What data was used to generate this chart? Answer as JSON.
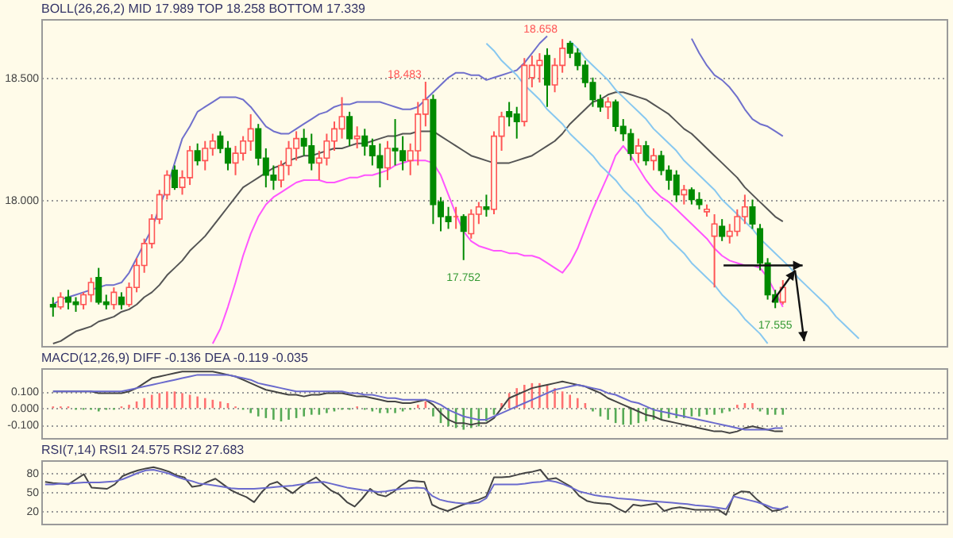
{
  "chart_data": [
    {
      "type": "candlestick",
      "title": "BOLL(26,26,2)  MID 17.989  TOP 18.258  BOTTOM 17.339",
      "categories": [
        null,
        null,
        null,
        null,
        null,
        null,
        null,
        null,
        null,
        null,
        null,
        null,
        null,
        null,
        null,
        null,
        null,
        null,
        null,
        null,
        null,
        null,
        null,
        null,
        null,
        null,
        null,
        null,
        null,
        null,
        null,
        null,
        null,
        null,
        null,
        null,
        null,
        null,
        null,
        null,
        null,
        null,
        null,
        null,
        null,
        null,
        null,
        null,
        null,
        null,
        null,
        null,
        null,
        null,
        null,
        null,
        null,
        null,
        null,
        null,
        null,
        null,
        null,
        null,
        null,
        null,
        null,
        null,
        null,
        null,
        null,
        null,
        null,
        null,
        null,
        null,
        null,
        null,
        null,
        null,
        null,
        null,
        null,
        null,
        null,
        null,
        null,
        null,
        null,
        null,
        null,
        null,
        null,
        null,
        null,
        null,
        null,
        null,
        null,
        null,
        null,
        null,
        null,
        null,
        null,
        null,
        null,
        null,
        null,
        null,
        null,
        null,
        null,
        null,
        null,
        null,
        null
      ],
      "ohlc": [
        [
          17.57,
          17.6,
          17.52,
          17.56
        ],
        [
          17.56,
          17.62,
          17.55,
          17.6
        ],
        [
          17.6,
          17.63,
          17.55,
          17.58
        ],
        [
          17.58,
          17.6,
          17.54,
          17.57
        ],
        [
          17.57,
          17.62,
          17.55,
          17.61
        ],
        [
          17.61,
          17.68,
          17.58,
          17.66
        ],
        [
          17.68,
          17.72,
          17.57,
          17.58
        ],
        [
          17.58,
          17.61,
          17.55,
          17.57
        ],
        [
          17.57,
          17.64,
          17.55,
          17.62
        ],
        [
          17.6,
          17.62,
          17.55,
          17.57
        ],
        [
          17.57,
          17.66,
          17.56,
          17.64
        ],
        [
          17.64,
          17.76,
          17.62,
          17.73
        ],
        [
          17.73,
          17.84,
          17.7,
          17.82
        ],
        [
          17.82,
          17.94,
          17.8,
          17.92
        ],
        [
          17.92,
          18.04,
          17.9,
          18.02
        ],
        [
          18.02,
          18.12,
          18.0,
          18.1
        ],
        [
          18.12,
          18.14,
          18.04,
          18.05
        ],
        [
          18.05,
          18.12,
          18.02,
          18.09
        ],
        [
          18.09,
          18.22,
          18.06,
          18.2
        ],
        [
          18.2,
          18.23,
          18.14,
          18.16
        ],
        [
          18.16,
          18.24,
          18.12,
          18.21
        ],
        [
          18.21,
          18.27,
          18.18,
          18.24
        ],
        [
          18.26,
          18.28,
          18.19,
          18.21
        ],
        [
          18.21,
          18.24,
          18.12,
          18.15
        ],
        [
          18.15,
          18.22,
          18.1,
          18.19
        ],
        [
          18.19,
          18.26,
          18.16,
          18.24
        ],
        [
          18.24,
          18.35,
          18.2,
          18.29
        ],
        [
          18.29,
          18.31,
          18.14,
          18.17
        ],
        [
          18.17,
          18.21,
          18.05,
          18.1
        ],
        [
          18.1,
          18.14,
          18.04,
          18.08
        ],
        [
          18.08,
          18.16,
          18.05,
          18.14
        ],
        [
          18.14,
          18.24,
          18.1,
          18.21
        ],
        [
          18.21,
          18.28,
          18.16,
          18.25
        ],
        [
          18.25,
          18.29,
          18.18,
          18.22
        ],
        [
          18.22,
          18.27,
          18.12,
          18.15
        ],
        [
          18.15,
          18.2,
          18.08,
          18.17
        ],
        [
          18.17,
          18.27,
          18.14,
          18.24
        ],
        [
          18.24,
          18.32,
          18.2,
          18.29
        ],
        [
          18.29,
          18.42,
          18.25,
          18.34
        ],
        [
          18.34,
          18.36,
          18.22,
          18.25
        ],
        [
          18.25,
          18.3,
          18.21,
          18.26
        ],
        [
          18.26,
          18.29,
          18.18,
          18.22
        ],
        [
          18.22,
          18.25,
          18.14,
          18.18
        ],
        [
          18.18,
          18.23,
          18.05,
          18.13
        ],
        [
          18.13,
          18.24,
          18.08,
          18.21
        ],
        [
          18.21,
          18.33,
          18.14,
          18.2
        ],
        [
          18.2,
          18.26,
          18.12,
          18.16
        ],
        [
          18.16,
          18.23,
          18.1,
          18.2
        ],
        [
          18.2,
          18.4,
          18.14,
          18.35
        ],
        [
          18.35,
          18.483,
          18.3,
          18.41
        ],
        [
          18.41,
          18.43,
          17.9,
          17.98
        ],
        [
          17.99,
          18.01,
          17.87,
          17.93
        ],
        [
          17.93,
          17.97,
          17.88,
          17.91
        ],
        [
          17.93,
          17.97,
          17.88,
          17.93
        ],
        [
          17.93,
          17.94,
          17.752,
          17.87
        ],
        [
          17.86,
          17.96,
          17.84,
          17.94
        ],
        [
          17.94,
          17.99,
          17.9,
          17.97
        ],
        [
          17.97,
          18.02,
          17.93,
          17.96
        ],
        [
          17.96,
          18.28,
          17.94,
          18.26
        ],
        [
          18.26,
          18.36,
          18.2,
          18.34
        ],
        [
          18.36,
          18.4,
          18.3,
          18.34
        ],
        [
          18.35,
          18.38,
          18.25,
          18.32
        ],
        [
          18.32,
          18.58,
          18.3,
          18.55
        ],
        [
          18.5,
          18.59,
          18.46,
          18.55
        ],
        [
          18.55,
          18.6,
          18.48,
          18.57
        ],
        [
          18.59,
          18.62,
          18.38,
          18.47
        ],
        [
          18.47,
          18.58,
          18.44,
          18.55
        ],
        [
          18.55,
          18.658,
          18.52,
          18.62
        ],
        [
          18.64,
          18.65,
          18.58,
          18.6
        ],
        [
          18.6,
          18.62,
          18.53,
          18.55
        ],
        [
          18.55,
          18.57,
          18.46,
          18.48
        ],
        [
          18.48,
          18.5,
          18.38,
          18.41
        ],
        [
          18.41,
          18.43,
          18.36,
          18.38
        ],
        [
          18.38,
          18.42,
          18.33,
          18.4
        ],
        [
          18.4,
          18.41,
          18.28,
          18.3
        ],
        [
          18.3,
          18.33,
          18.24,
          18.27
        ],
        [
          18.27,
          18.29,
          18.16,
          18.19
        ],
        [
          18.19,
          18.25,
          18.15,
          18.22
        ],
        [
          18.22,
          18.24,
          18.14,
          18.16
        ],
        [
          18.16,
          18.21,
          18.12,
          18.18
        ],
        [
          18.18,
          18.2,
          18.1,
          18.12
        ],
        [
          18.12,
          18.14,
          18.04,
          18.08
        ],
        [
          18.1,
          18.12,
          17.99,
          18.02
        ],
        [
          18.02,
          18.06,
          17.98,
          18.04
        ],
        [
          18.04,
          18.05,
          17.98,
          18.0
        ],
        [
          18.0,
          18.03,
          17.96,
          17.98
        ],
        [
          17.95,
          17.98,
          17.93,
          17.96
        ],
        [
          17.85,
          17.94,
          17.64,
          17.9
        ],
        [
          17.89,
          17.92,
          17.83,
          17.85
        ],
        [
          17.85,
          17.9,
          17.82,
          17.87
        ],
        [
          17.87,
          17.96,
          17.85,
          17.93
        ],
        [
          17.93,
          18.02,
          17.9,
          17.97
        ],
        [
          17.97,
          18.0,
          17.88,
          17.9
        ],
        [
          17.88,
          17.9,
          17.71,
          17.74
        ],
        [
          17.74,
          17.76,
          17.59,
          17.61
        ],
        [
          17.61,
          17.63,
          17.555,
          17.58
        ],
        [
          17.58,
          17.67,
          17.57,
          17.64
        ],
        null,
        null,
        null,
        null,
        null,
        null,
        null,
        null,
        null,
        null,
        null,
        null,
        null,
        null,
        null,
        null,
        null,
        null,
        null,
        null
      ],
      "series": [
        {
          "type": "line",
          "color": "#7070cc",
          "values": [
            17.57,
            17.59,
            17.6,
            17.61,
            17.62,
            17.63,
            17.64,
            17.65,
            17.65,
            17.66,
            17.7,
            17.76,
            17.82,
            17.88,
            17.97,
            18.05,
            18.15,
            18.25,
            18.3,
            18.36,
            18.38,
            18.4,
            18.42,
            18.42,
            18.42,
            18.41,
            18.38,
            18.34,
            18.3,
            18.28,
            18.27,
            18.27,
            18.29,
            18.31,
            18.33,
            18.35,
            18.36,
            18.38,
            18.39,
            18.39,
            18.4,
            18.4,
            18.4,
            18.4,
            18.39,
            18.38,
            18.37,
            18.37,
            18.38,
            18.41,
            18.44,
            18.47,
            18.5,
            18.52,
            18.52,
            18.51,
            18.51,
            18.49,
            18.5,
            18.51,
            18.52,
            18.53,
            18.56,
            18.6,
            18.64,
            18.67,
            null,
            null,
            null,
            null,
            null,
            null,
            null,
            null,
            null,
            null,
            null,
            null,
            null,
            null,
            null,
            null,
            null,
            null,
            18.66,
            18.6,
            18.55,
            18.51,
            18.49,
            18.46,
            18.42,
            18.37,
            18.33,
            18.31,
            18.3,
            18.28,
            18.26,
            null,
            null,
            null,
            null,
            null,
            null,
            null,
            null,
            null,
            null,
            null,
            null,
            null,
            null,
            null,
            null,
            null,
            null,
            null,
            null
          ]
        },
        {
          "type": "line",
          "color": "#555555",
          "values": [
            17.41,
            17.42,
            17.44,
            17.46,
            17.47,
            17.48,
            17.5,
            17.51,
            17.52,
            17.54,
            17.55,
            17.57,
            17.6,
            17.62,
            17.65,
            17.69,
            17.72,
            17.75,
            17.79,
            17.82,
            17.85,
            17.89,
            17.93,
            17.97,
            18.01,
            18.05,
            18.07,
            18.09,
            18.11,
            18.13,
            18.14,
            18.16,
            18.17,
            18.18,
            18.18,
            18.19,
            18.2,
            18.21,
            18.21,
            18.22,
            18.23,
            18.23,
            18.24,
            18.25,
            18.26,
            18.26,
            18.27,
            18.27,
            18.28,
            18.28,
            18.28,
            18.26,
            18.24,
            18.22,
            18.2,
            18.18,
            18.17,
            18.16,
            18.15,
            18.15,
            18.15,
            18.16,
            18.17,
            18.18,
            18.2,
            18.22,
            18.24,
            18.27,
            18.31,
            18.34,
            18.37,
            18.4,
            18.41,
            18.43,
            18.44,
            18.44,
            18.43,
            18.42,
            18.41,
            18.39,
            18.37,
            18.35,
            18.32,
            18.29,
            18.27,
            18.24,
            18.21,
            18.18,
            18.15,
            18.12,
            18.09,
            18.05,
            18.02,
            17.99,
            17.96,
            17.93,
            17.91,
            null,
            null,
            null,
            null,
            null,
            null,
            null,
            null,
            null,
            null,
            null,
            null,
            null,
            null,
            null,
            null,
            null,
            null,
            null,
            null
          ]
        },
        {
          "type": "line",
          "color": "#ff55ff",
          "values": [
            null,
            null,
            null,
            null,
            null,
            null,
            null,
            null,
            null,
            null,
            null,
            null,
            null,
            null,
            null,
            null,
            null,
            null,
            null,
            null,
            null,
            17.41,
            17.47,
            17.56,
            17.66,
            17.77,
            17.86,
            17.93,
            17.98,
            18.01,
            18.03,
            18.05,
            18.07,
            18.08,
            18.08,
            18.08,
            18.07,
            18.07,
            18.08,
            18.09,
            18.09,
            18.1,
            18.1,
            18.11,
            18.12,
            18.14,
            18.15,
            18.16,
            18.16,
            18.16,
            18.15,
            18.1,
            18.02,
            17.94,
            17.87,
            17.83,
            17.81,
            17.8,
            17.79,
            17.79,
            17.78,
            17.78,
            17.77,
            17.77,
            17.76,
            17.74,
            17.72,
            17.7,
            17.74,
            17.8,
            17.88,
            17.96,
            18.03,
            18.1,
            18.18,
            18.22,
            18.18,
            18.13,
            18.08,
            18.04,
            18.01,
            17.99,
            17.96,
            17.93,
            17.9,
            17.87,
            17.84,
            17.8,
            17.77,
            17.75,
            17.74,
            17.73,
            17.73,
            17.72,
            17.68,
            17.62,
            17.56,
            null,
            null,
            null,
            null,
            null,
            null,
            null,
            null,
            null,
            null,
            null,
            null,
            null,
            null,
            null,
            null,
            null,
            null,
            null,
            null
          ]
        },
        {
          "type": "line",
          "color": "#88c8f0",
          "values": [
            null,
            null,
            null,
            null,
            null,
            null,
            null,
            null,
            null,
            null,
            null,
            null,
            null,
            null,
            null,
            null,
            null,
            null,
            null,
            null,
            null,
            null,
            null,
            null,
            null,
            null,
            null,
            null,
            null,
            null,
            null,
            null,
            null,
            null,
            null,
            null,
            null,
            null,
            null,
            null,
            null,
            null,
            null,
            null,
            null,
            null,
            null,
            null,
            null,
            null,
            null,
            null,
            null,
            null,
            null,
            null,
            null,
            null,
            null,
            null,
            null,
            null,
            null,
            null,
            null,
            null,
            null,
            null,
            18.65,
            18.62,
            18.58,
            18.55,
            18.52,
            18.49,
            18.45,
            18.42,
            18.39,
            18.36,
            18.33,
            18.29,
            18.26,
            18.23,
            18.2,
            18.16,
            18.13,
            18.1,
            18.07,
            18.04,
            18.0,
            17.97,
            17.94,
            17.91,
            17.88,
            17.84,
            17.81,
            17.78,
            17.75,
            17.72,
            17.68,
            17.65,
            17.62,
            17.59,
            17.56,
            17.52,
            17.49,
            17.46,
            17.43,
            null,
            null,
            null,
            null,
            null,
            null,
            null,
            null,
            null,
            null
          ]
        },
        {
          "type": "line",
          "color": "#88c8f0",
          "values": [
            null,
            null,
            null,
            null,
            null,
            null,
            null,
            null,
            null,
            null,
            null,
            null,
            null,
            null,
            null,
            null,
            null,
            null,
            null,
            null,
            null,
            null,
            null,
            null,
            null,
            null,
            null,
            null,
            null,
            null,
            null,
            null,
            null,
            null,
            null,
            null,
            null,
            null,
            null,
            null,
            null,
            null,
            null,
            null,
            null,
            null,
            null,
            null,
            null,
            null,
            null,
            null,
            null,
            null,
            null,
            null,
            null,
            18.64,
            18.61,
            18.57,
            18.54,
            18.51,
            18.47,
            18.44,
            18.41,
            18.37,
            18.34,
            18.31,
            18.27,
            18.24,
            18.21,
            18.18,
            18.14,
            18.11,
            18.08,
            18.04,
            18.01,
            17.98,
            17.94,
            17.91,
            17.88,
            17.84,
            17.81,
            17.78,
            17.74,
            17.71,
            17.68,
            17.65,
            17.61,
            17.58,
            17.55,
            17.51,
            17.48,
            17.45,
            17.41,
            null,
            null,
            null,
            null,
            null,
            null,
            null,
            null,
            null,
            null,
            null,
            null,
            null,
            null,
            null,
            null,
            null,
            null,
            null,
            null,
            null,
            null
          ]
        }
      ],
      "annotations": [
        "18.483",
        {
          "text": "18.658",
          "y": 18.658
        },
        {
          "text": "17.752",
          "y": 17.752
        },
        {
          "text": "17.555",
          "y": 17.555
        }
      ],
      "ylim": [
        17.4,
        18.74
      ],
      "yticks": [
        {
          "value": 18.5,
          "label": "18.500"
        },
        {
          "value": 18,
          "label": "18.000"
        }
      ],
      "grid": "y",
      "tick_labels": "y"
    },
    {
      "type": "bar",
      "title": "MACD(12,26,9)  DIFF -0.136  DEA -0.119  -0.035",
      "categories": [
        null,
        null,
        null,
        null,
        null,
        null,
        null,
        null,
        null,
        null,
        null,
        null,
        null,
        null,
        null,
        null,
        null,
        null,
        null,
        null,
        null,
        null,
        null,
        null,
        null,
        null,
        null,
        null,
        null,
        null,
        null,
        null,
        null,
        null,
        null,
        null,
        null,
        null,
        null,
        null,
        null,
        null,
        null,
        null,
        null,
        null,
        null,
        null,
        null,
        null,
        null,
        null,
        null,
        null,
        null,
        null,
        null,
        null,
        null,
        null,
        null,
        null,
        null,
        null,
        null,
        null,
        null,
        null,
        null,
        null,
        null,
        null,
        null,
        null,
        null,
        null,
        null,
        null,
        null,
        null,
        null,
        null,
        null,
        null,
        null,
        null,
        null,
        null,
        null,
        null,
        null,
        null,
        null,
        null,
        null,
        null,
        null,
        null,
        null,
        null,
        null,
        null,
        null,
        null,
        null,
        null,
        null,
        null,
        null,
        null,
        null,
        null,
        null,
        null,
        null,
        null,
        null
      ],
      "series": [
        {
          "type": "bar",
          "values": [
            0.01,
            0.01,
            0.01,
            -0.01,
            -0.01,
            -0.01,
            -0.02,
            -0.01,
            -0.01,
            0.01,
            0.02,
            0.04,
            0.06,
            0.08,
            0.09,
            0.1,
            0.1,
            0.09,
            0.08,
            0.07,
            0.06,
            0.05,
            0.04,
            0.03,
            0.01,
            -0.01,
            -0.03,
            -0.05,
            -0.06,
            -0.07,
            -0.08,
            -0.07,
            -0.06,
            -0.05,
            -0.04,
            -0.04,
            -0.03,
            -0.02,
            -0.01,
            -0.01,
            0.01,
            -0.01,
            -0.02,
            -0.03,
            -0.03,
            -0.03,
            -0.02,
            -0.01,
            0.02,
            0.04,
            -0.05,
            -0.09,
            -0.11,
            -0.12,
            -0.13,
            -0.12,
            -0.11,
            -0.08,
            -0.04,
            0.03,
            0.09,
            0.12,
            0.14,
            0.15,
            0.15,
            0.14,
            0.12,
            0.1,
            0.08,
            0.06,
            0.03,
            -0.02,
            -0.05,
            -0.07,
            -0.09,
            -0.1,
            -0.1,
            -0.09,
            -0.08,
            -0.07,
            -0.07,
            -0.06,
            -0.06,
            -0.06,
            -0.05,
            -0.05,
            -0.04,
            -0.04,
            -0.03,
            -0.02,
            0.02,
            0.03,
            0.03,
            -0.02,
            -0.04,
            -0.04,
            -0.04,
            null,
            null,
            null,
            null,
            null,
            null,
            null,
            null,
            null,
            null,
            null,
            null,
            null,
            null,
            null,
            null,
            null,
            null,
            null,
            null
          ],
          "colors": [
            "#ff7070",
            "#ff7070",
            "#ff7070",
            "#55aa55",
            "#55aa55",
            "#55aa55",
            "#55aa55",
            "#55aa55",
            "#55aa55",
            "#ff7070",
            "#ff7070",
            "#ff7070",
            "#ff7070",
            "#ff7070",
            "#ff7070",
            "#ff7070",
            "#ff7070",
            "#ff7070",
            "#ff7070",
            "#ff7070",
            "#ff7070",
            "#ff7070",
            "#ff7070",
            "#ff7070",
            "#ff7070",
            "#55aa55",
            "#55aa55",
            "#55aa55",
            "#55aa55",
            "#55aa55",
            "#55aa55",
            "#55aa55",
            "#55aa55",
            "#55aa55",
            "#55aa55",
            "#55aa55",
            "#55aa55",
            "#55aa55",
            "#55aa55",
            "#55aa55",
            "#ff7070",
            "#55aa55",
            "#55aa55",
            "#55aa55",
            "#55aa55",
            "#55aa55",
            "#55aa55",
            "#55aa55",
            "#ff7070",
            "#ff7070",
            "#55aa55",
            "#55aa55",
            "#55aa55",
            "#55aa55",
            "#55aa55",
            "#55aa55",
            "#55aa55",
            "#55aa55",
            "#55aa55",
            "#ff7070",
            "#ff7070",
            "#ff7070",
            "#ff7070",
            "#ff7070",
            "#ff7070",
            "#ff7070",
            "#ff7070",
            "#ff7070",
            "#ff7070",
            "#ff7070",
            "#ff7070",
            "#55aa55",
            "#55aa55",
            "#55aa55",
            "#55aa55",
            "#55aa55",
            "#55aa55",
            "#55aa55",
            "#55aa55",
            "#55aa55",
            "#55aa55",
            "#55aa55",
            "#55aa55",
            "#55aa55",
            "#55aa55",
            "#55aa55",
            "#55aa55",
            "#55aa55",
            "#55aa55",
            "#55aa55",
            "#ff7070",
            "#ff7070",
            "#ff7070",
            "#55aa55",
            "#55aa55",
            "#55aa55",
            "#55aa55",
            null,
            null,
            null,
            null,
            null,
            null,
            null,
            null,
            null,
            null,
            null,
            null,
            null,
            null,
            null,
            null,
            null,
            null,
            null,
            null
          ]
        },
        {
          "type": "line",
          "color": "#444444",
          "values": [
            0.1,
            0.1,
            0.1,
            0.1,
            0.1,
            0.1,
            0.09,
            0.09,
            0.09,
            0.09,
            0.1,
            0.12,
            0.15,
            0.18,
            0.19,
            0.2,
            0.21,
            0.22,
            0.22,
            0.22,
            0.22,
            0.22,
            0.21,
            0.2,
            0.19,
            0.17,
            0.15,
            0.13,
            0.11,
            0.1,
            0.09,
            0.08,
            0.08,
            0.07,
            0.08,
            0.08,
            0.09,
            0.09,
            0.09,
            0.08,
            0.07,
            0.07,
            0.06,
            0.05,
            0.04,
            0.04,
            0.03,
            0.03,
            0.04,
            0.05,
            0.02,
            -0.03,
            -0.07,
            -0.09,
            -0.09,
            -0.1,
            -0.09,
            -0.09,
            -0.06,
            0.0,
            0.06,
            0.08,
            0.1,
            0.12,
            0.13,
            0.14,
            0.15,
            0.16,
            0.15,
            0.14,
            0.13,
            0.11,
            0.09,
            0.06,
            0.04,
            0.02,
            0.0,
            -0.02,
            -0.04,
            -0.05,
            -0.07,
            -0.08,
            -0.09,
            -0.1,
            -0.11,
            -0.12,
            -0.13,
            -0.14,
            -0.14,
            -0.15,
            -0.14,
            -0.12,
            -0.11,
            -0.12,
            -0.13,
            -0.14,
            -0.14,
            null,
            null,
            null,
            null,
            null,
            null,
            null,
            null,
            null,
            null,
            null,
            null,
            null,
            null,
            null,
            null,
            null,
            null,
            null,
            null
          ]
        },
        {
          "type": "line",
          "color": "#6a6acd",
          "values": [
            0.1,
            0.1,
            0.1,
            0.1,
            0.1,
            0.1,
            0.1,
            0.1,
            0.1,
            0.1,
            0.11,
            0.12,
            0.13,
            0.14,
            0.15,
            0.16,
            0.17,
            0.18,
            0.19,
            0.2,
            0.2,
            0.2,
            0.2,
            0.2,
            0.19,
            0.18,
            0.17,
            0.15,
            0.14,
            0.13,
            0.12,
            0.11,
            0.1,
            0.1,
            0.1,
            0.1,
            0.1,
            0.1,
            0.1,
            0.09,
            0.09,
            0.08,
            0.08,
            0.07,
            0.06,
            0.06,
            0.05,
            0.05,
            0.05,
            0.05,
            0.04,
            0.02,
            -0.01,
            -0.03,
            -0.05,
            -0.06,
            -0.07,
            -0.07,
            -0.05,
            -0.03,
            -0.01,
            0.01,
            0.03,
            0.05,
            0.07,
            0.09,
            0.11,
            0.12,
            0.13,
            0.14,
            0.13,
            0.12,
            0.11,
            0.09,
            0.08,
            0.06,
            0.04,
            0.03,
            0.01,
            -0.01,
            -0.02,
            -0.03,
            -0.04,
            -0.05,
            -0.06,
            -0.07,
            -0.08,
            -0.09,
            -0.1,
            -0.11,
            -0.12,
            -0.13,
            -0.13,
            -0.13,
            -0.13,
            -0.12,
            -0.12,
            null,
            null,
            null,
            null,
            null,
            null,
            null,
            null,
            null,
            null,
            null,
            null,
            null,
            null,
            null,
            null,
            null,
            null,
            null,
            null
          ]
        }
      ],
      "ylim": [
        -0.18,
        0.24
      ],
      "yticks": [
        {
          "value": 0.1,
          "label": "0.100"
        },
        {
          "value": 0,
          "label": "0.000"
        },
        {
          "value": -0.1,
          "label": "-0.100"
        }
      ],
      "grid": "y",
      "tick_labels": "y"
    },
    {
      "type": "line",
      "title": "RSI(7,14)  RSI1 24.575  RSI2 27.683",
      "categories": [
        null,
        null,
        null,
        null,
        null,
        null,
        null,
        null,
        null,
        null,
        null,
        null,
        null,
        null,
        null,
        null,
        null,
        null,
        null,
        null,
        null,
        null,
        null,
        null,
        null,
        null,
        null,
        null,
        null,
        null,
        null,
        null,
        null,
        null,
        null,
        null,
        null,
        null,
        null,
        null,
        null,
        null,
        null,
        null,
        null,
        null,
        null,
        null,
        null,
        null,
        null,
        null,
        null,
        null,
        null,
        null,
        null,
        null,
        null,
        null,
        null,
        null,
        null,
        null,
        null,
        null,
        null,
        null,
        null,
        null,
        null,
        null,
        null,
        null,
        null,
        null,
        null,
        null,
        null,
        null,
        null,
        null,
        null,
        null,
        null,
        null,
        null,
        null,
        null,
        null,
        null,
        null,
        null,
        null,
        null,
        null,
        null,
        null,
        null,
        null,
        null,
        null,
        null,
        null,
        null,
        null,
        null,
        null,
        null,
        null,
        null,
        null,
        null,
        null,
        null,
        null,
        null
      ],
      "series": [
        {
          "color": "#444444",
          "values": [
            66,
            64,
            63,
            62,
            70,
            78,
            57,
            56,
            55,
            62,
            75,
            80,
            84,
            87,
            89,
            86,
            82,
            76,
            73,
            58,
            60,
            66,
            71,
            62,
            53,
            47,
            42,
            34,
            50,
            62,
            66,
            56,
            48,
            58,
            66,
            73,
            62,
            52,
            46,
            34,
            27,
            40,
            55,
            46,
            43,
            50,
            60,
            68,
            67,
            66,
            30,
            24,
            20,
            25,
            30,
            34,
            38,
            43,
            73,
            73,
            74,
            77,
            80,
            82,
            85,
            70,
            72,
            65,
            58,
            44,
            36,
            33,
            32,
            31,
            24,
            18,
            30,
            28,
            30,
            32,
            20,
            24,
            26,
            24,
            22,
            22,
            22,
            22,
            14,
            45,
            51,
            50,
            38,
            28,
            20,
            22,
            27,
            null,
            null,
            null,
            null,
            null,
            null,
            null,
            null,
            null,
            null,
            null,
            null,
            null,
            null,
            null,
            null,
            null,
            null,
            null,
            null
          ]
        },
        {
          "color": "#6a6acd",
          "values": [
            62,
            62,
            63,
            63,
            64,
            65,
            65,
            65,
            66,
            67,
            70,
            75,
            80,
            84,
            85,
            82,
            79,
            74,
            70,
            67,
            63,
            62,
            60,
            58,
            56,
            55,
            55,
            55,
            56,
            57,
            58,
            59,
            60,
            62,
            64,
            65,
            66,
            63,
            60,
            57,
            55,
            53,
            52,
            50,
            51,
            53,
            55,
            56,
            57,
            56,
            44,
            38,
            35,
            33,
            32,
            32,
            33,
            40,
            62,
            62,
            62,
            62,
            63,
            65,
            66,
            68,
            66,
            62,
            57,
            51,
            48,
            45,
            43,
            42,
            40,
            39,
            38,
            37,
            36,
            35,
            34,
            33,
            32,
            31,
            29,
            28,
            27,
            25,
            23,
            43,
            40,
            37,
            34,
            30,
            25,
            23,
            27,
            null,
            null,
            null,
            null,
            null,
            null,
            null,
            null,
            null,
            null,
            null,
            null,
            null,
            null,
            null,
            null,
            null,
            null,
            null,
            null
          ]
        }
      ],
      "ylim": [
        0,
        100
      ],
      "yticks": [
        80,
        50,
        20
      ],
      "grid": "y",
      "tick_labels": "y"
    }
  ]
}
